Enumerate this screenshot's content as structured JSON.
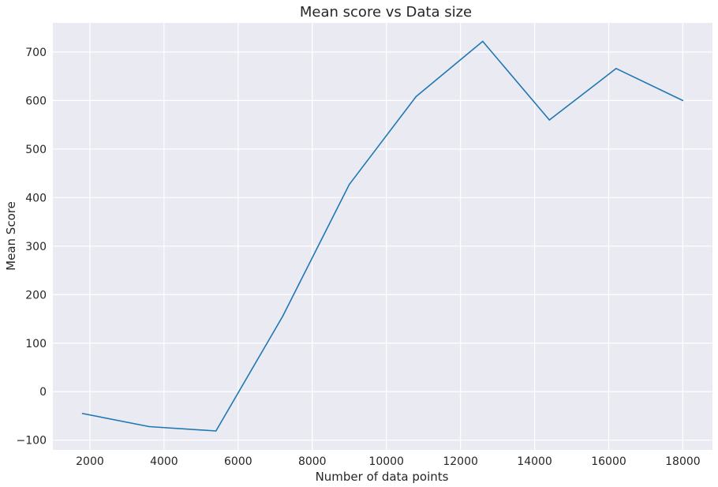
{
  "chart_data": {
    "type": "line",
    "title": "Mean score vs Data size",
    "xlabel": "Number of data points",
    "ylabel": "Mean Score",
    "xlim": [
      1000,
      18800
    ],
    "ylim": [
      -120,
      760
    ],
    "xticks": [
      2000,
      4000,
      6000,
      8000,
      10000,
      12000,
      14000,
      16000,
      18000
    ],
    "yticks": [
      -100,
      0,
      100,
      200,
      300,
      400,
      500,
      600,
      700
    ],
    "grid": true,
    "legend": "none",
    "series": [
      {
        "color": "#1f77b4",
        "x": [
          1800,
          3600,
          5400,
          7200,
          9000,
          10800,
          12600,
          14400,
          16200,
          18000
        ],
        "y": [
          -45,
          -72,
          -81,
          155,
          427,
          608,
          722,
          560,
          666,
          600
        ]
      }
    ]
  },
  "style": {
    "plot_background": "#eaeaf2",
    "grid_color": "#ffffff",
    "text_color": "#262626"
  }
}
